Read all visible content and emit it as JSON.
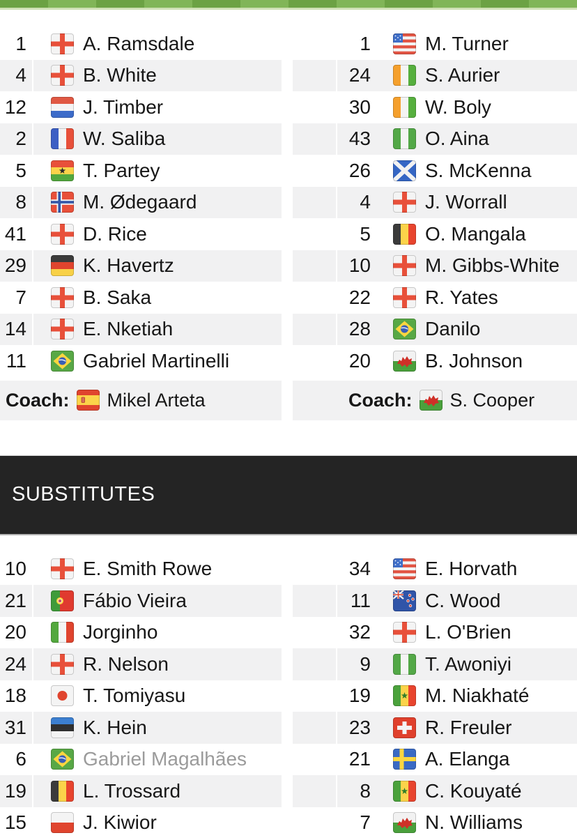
{
  "colors": {
    "pitch_green_dark": "#6ca244",
    "pitch_green_light": "#81b558",
    "pitch_green_pale": "#cfe0b5",
    "row_alt_background": "#f1f1f2",
    "banner_background": "#242424",
    "banner_text": "#ffffff",
    "text": "#171717",
    "muted_player_text": "#9b9b9b"
  },
  "lineups": {
    "home": {
      "coach_label": "Coach:",
      "coach": {
        "name": "Mikel Arteta",
        "flag": "spain"
      },
      "players": [
        {
          "num": "1",
          "name": "A. Ramsdale",
          "flag": "england"
        },
        {
          "num": "4",
          "name": "B. White",
          "flag": "england"
        },
        {
          "num": "12",
          "name": "J. Timber",
          "flag": "netherlands"
        },
        {
          "num": "2",
          "name": "W. Saliba",
          "flag": "france"
        },
        {
          "num": "5",
          "name": "T. Partey",
          "flag": "ghana"
        },
        {
          "num": "8",
          "name": "M. Ødegaard",
          "flag": "norway"
        },
        {
          "num": "41",
          "name": "D. Rice",
          "flag": "england"
        },
        {
          "num": "29",
          "name": "K. Havertz",
          "flag": "germany"
        },
        {
          "num": "7",
          "name": "B. Saka",
          "flag": "england"
        },
        {
          "num": "14",
          "name": "E. Nketiah",
          "flag": "england"
        },
        {
          "num": "11",
          "name": "Gabriel Martinelli",
          "flag": "brazil"
        }
      ]
    },
    "away": {
      "coach_label": "Coach:",
      "coach": {
        "name": "S. Cooper",
        "flag": "wales"
      },
      "players": [
        {
          "num": "1",
          "name": "M. Turner",
          "flag": "usa"
        },
        {
          "num": "24",
          "name": "S. Aurier",
          "flag": "ivory-coast"
        },
        {
          "num": "30",
          "name": "W. Boly",
          "flag": "ivory-coast"
        },
        {
          "num": "43",
          "name": "O. Aina",
          "flag": "nigeria"
        },
        {
          "num": "26",
          "name": "S. McKenna",
          "flag": "scotland"
        },
        {
          "num": "4",
          "name": "J. Worrall",
          "flag": "england"
        },
        {
          "num": "5",
          "name": "O. Mangala",
          "flag": "belgium"
        },
        {
          "num": "10",
          "name": "M. Gibbs-White",
          "flag": "england"
        },
        {
          "num": "22",
          "name": "R. Yates",
          "flag": "england"
        },
        {
          "num": "28",
          "name": "Danilo",
          "flag": "brazil"
        },
        {
          "num": "20",
          "name": "B. Johnson",
          "flag": "wales"
        }
      ]
    }
  },
  "substitutes": {
    "title": "SUBSTITUTES",
    "home": [
      {
        "num": "10",
        "name": "E. Smith Rowe",
        "flag": "england"
      },
      {
        "num": "21",
        "name": "Fábio Vieira",
        "flag": "portugal"
      },
      {
        "num": "20",
        "name": "Jorginho",
        "flag": "italy"
      },
      {
        "num": "24",
        "name": "R. Nelson",
        "flag": "england"
      },
      {
        "num": "18",
        "name": "T. Tomiyasu",
        "flag": "japan"
      },
      {
        "num": "31",
        "name": "K. Hein",
        "flag": "estonia"
      },
      {
        "num": "6",
        "name": "Gabriel Magalhães",
        "flag": "brazil",
        "muted": true
      },
      {
        "num": "19",
        "name": "L. Trossard",
        "flag": "belgium"
      },
      {
        "num": "15",
        "name": "J. Kiwior",
        "flag": "poland"
      }
    ],
    "away": [
      {
        "num": "34",
        "name": "E. Horvath",
        "flag": "usa"
      },
      {
        "num": "11",
        "name": "C. Wood",
        "flag": "new-zealand"
      },
      {
        "num": "32",
        "name": "L. O'Brien",
        "flag": "england"
      },
      {
        "num": "9",
        "name": "T. Awoniyi",
        "flag": "nigeria"
      },
      {
        "num": "19",
        "name": "M. Niakhaté",
        "flag": "senegal"
      },
      {
        "num": "23",
        "name": "R. Freuler",
        "flag": "switzerland"
      },
      {
        "num": "21",
        "name": "A. Elanga",
        "flag": "sweden"
      },
      {
        "num": "8",
        "name": "C. Kouyaté",
        "flag": "senegal"
      },
      {
        "num": "7",
        "name": "N. Williams",
        "flag": "wales"
      }
    ]
  }
}
